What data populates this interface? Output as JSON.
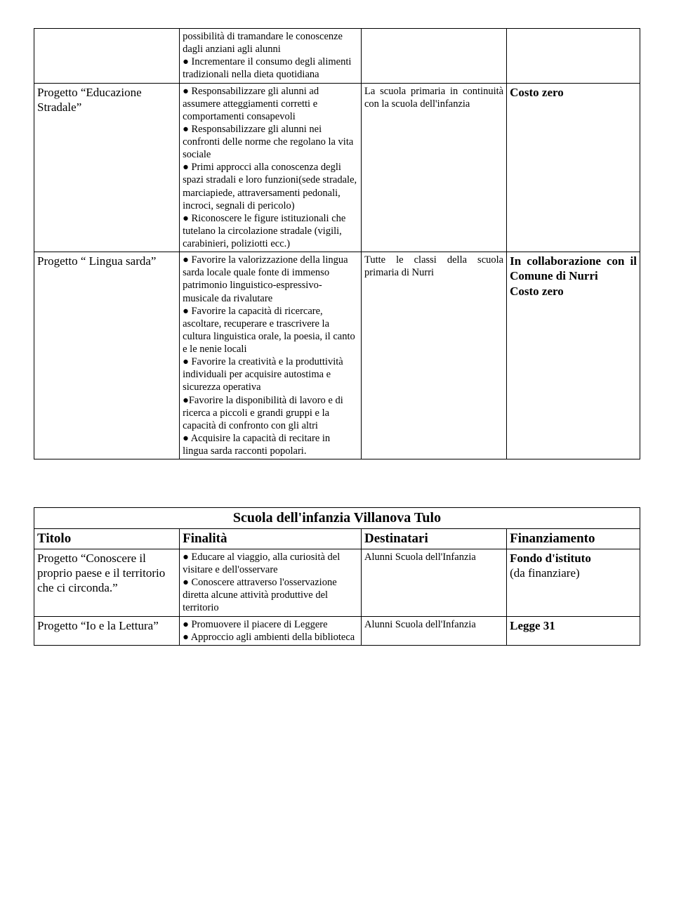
{
  "table1": {
    "row0": {
      "col1": "",
      "col2": "possibilità di tramandare le conoscenze dagli anziani agli alunni\n● Incrementare il consumo degli alimenti tradizionali nella dieta quotidiana",
      "col3": "",
      "col4": ""
    },
    "row1": {
      "col1": "Progetto “Educazione Stradale”",
      "col2": "● Responsabilizzare gli alunni ad assumere atteggiamenti corretti e comportamenti consapevoli\n● Responsabilizzare gli alunni nei confronti delle norme che regolano la vita sociale\n● Primi approcci alla conoscenza degli spazi stradali e loro funzioni(sede stradale, marciapiede, attraversamenti pedonali, incroci, segnali di pericolo)\n● Riconoscere le figure istituzionali che tutelano la circolazione stradale (vigili, carabinieri, poliziotti ecc.)",
      "col3": "La scuola primaria in continuità con la scuola dell'infanzia",
      "col4": "Costo zero"
    },
    "row2": {
      "col1": "Progetto “ Lingua sarda”",
      "col2": "● Favorire la valorizzazione della lingua sarda locale quale fonte  di immenso patrimonio linguistico-espressivo-musicale da rivalutare\n● Favorire la capacità di ricercare, ascoltare, recuperare e trascrivere la cultura linguistica orale, la poesia, il canto e le nenie locali\n● Favorire la creatività e la produttività individuali per acquisire autostima e sicurezza operativa\n●Favorire la disponibilità di lavoro e di ricerca a piccoli e grandi gruppi e la capacità di confronto con gli altri\n● Acquisire la capacità di recitare in lingua sarda racconti popolari.",
      "col3": "Tutte le classi della scuola primaria di Nurri",
      "col4_line1": "In collaborazione con il Comune di Nurri",
      "col4_line2": "Costo zero"
    }
  },
  "table2": {
    "section_title": "Scuola dell'infanzia Villanova Tulo",
    "headers": {
      "c1": "Titolo",
      "c2": "Finalità",
      "c3": "Destinatari",
      "c4": "Finanziamento"
    },
    "row0": {
      "col1": "Progetto “Conoscere il proprio paese e il territorio che ci circonda.”",
      "col2": "● Educare al viaggio, alla curiosità del visitare e dell'osservare\n● Conoscere attraverso l'osservazione diretta alcune attività produttive del territorio",
      "col3": "Alunni Scuola dell'Infanzia",
      "col4_line1": "Fondo d'istituto",
      "col4_line2": "(da finanziare)"
    },
    "row1": {
      "col1": "Progetto “Io  e la Lettura”",
      "col2": "● Promuovere  il piacere di Leggere\n● Approccio agli ambienti della biblioteca",
      "col3": "Alunni Scuola dell'Infanzia",
      "col4": "Legge 31"
    }
  }
}
